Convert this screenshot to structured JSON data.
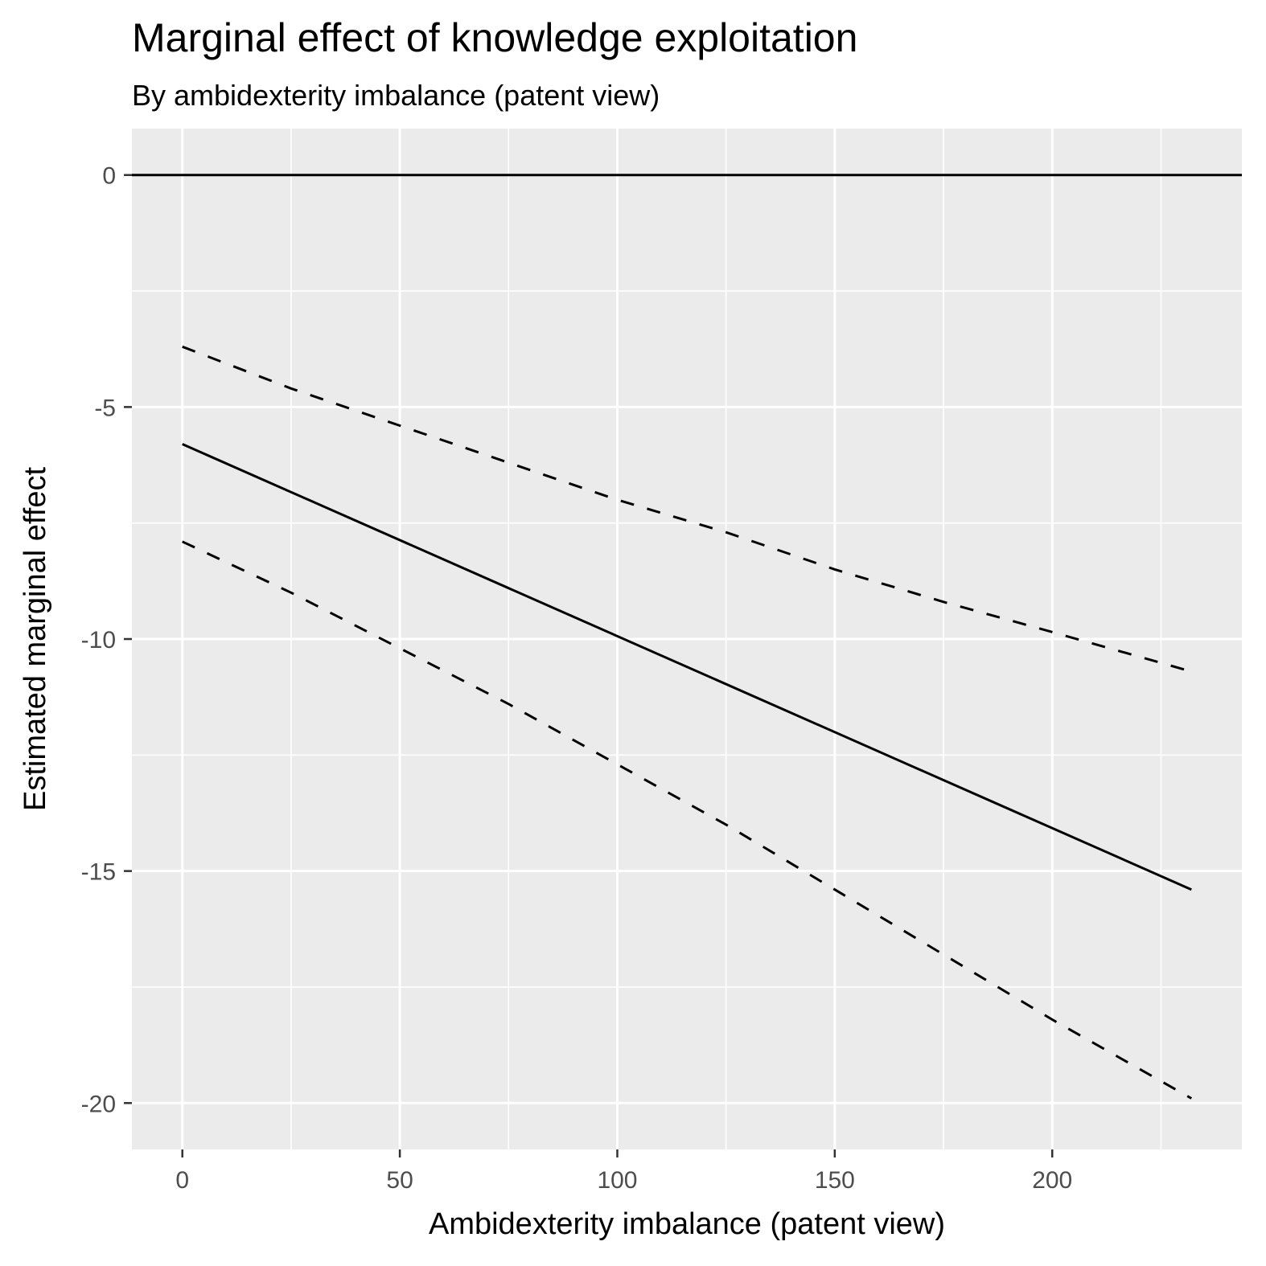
{
  "chart_data": {
    "type": "line",
    "title": "Marginal effect of knowledge exploitation",
    "subtitle": "By ambidexterity imbalance (patent view)",
    "xlabel": "Ambidexterity imbalance (patent view)",
    "ylabel": "Estimated marginal effect",
    "xlim": [
      -11.6,
      243.6
    ],
    "ylim": [
      -21.0,
      1.0
    ],
    "x_ticks": [
      0,
      50,
      100,
      150,
      200
    ],
    "x_minor_ticks": [
      25,
      75,
      125,
      175,
      225
    ],
    "y_ticks": [
      0,
      -5,
      -10,
      -15,
      -20
    ],
    "y_minor_ticks": [
      -2.5,
      -7.5,
      -12.5,
      -17.5
    ],
    "reference_line_y": 0,
    "grid": true,
    "colors": {
      "panel_background": "#ebebeb",
      "grid": "#ffffff",
      "line": "#000000",
      "tick_label": "#4d4d4d"
    },
    "series": [
      {
        "style": "solid",
        "x": [
          0,
          232
        ],
        "y": [
          -5.8,
          -15.4
        ]
      },
      {
        "style": "dashed",
        "x": [
          0,
          25,
          50,
          75,
          100,
          125,
          150,
          175,
          200,
          232
        ],
        "y": [
          -3.7,
          -4.6,
          -5.4,
          -6.2,
          -7.0,
          -7.7,
          -8.5,
          -9.2,
          -9.85,
          -10.7
        ]
      },
      {
        "style": "dashed",
        "x": [
          0,
          25,
          50,
          75,
          100,
          125,
          150,
          175,
          200,
          232
        ],
        "y": [
          -7.9,
          -9.0,
          -10.2,
          -11.4,
          -12.7,
          -14.0,
          -15.4,
          -16.8,
          -18.2,
          -19.9
        ]
      }
    ]
  }
}
